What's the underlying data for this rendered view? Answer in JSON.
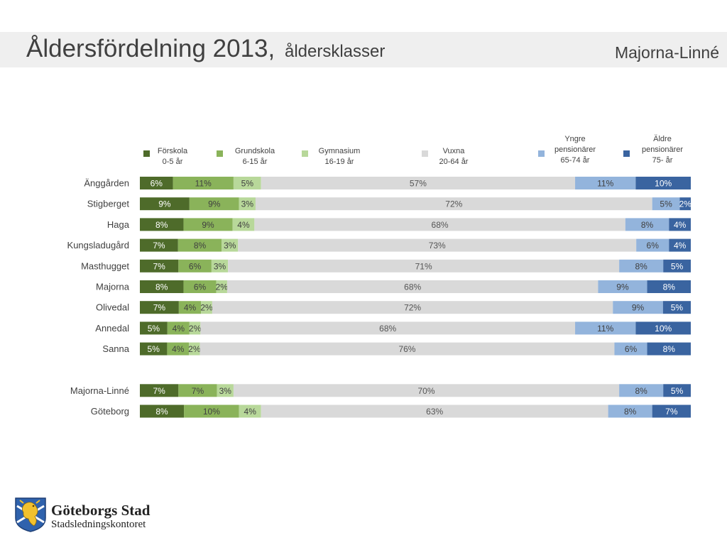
{
  "header": {
    "title": "Åldersfördelning 2013,",
    "subtitle": "åldersklasser",
    "region": "Majorna-Linné"
  },
  "footer": {
    "org_name": "Göteborgs Stad",
    "dept_name": "Stadsledningskontoret"
  },
  "colors": {
    "label_text": "#404040",
    "segments": [
      "#4e6b2a",
      "#8ab35a",
      "#b8d89a",
      "#d9d9d9",
      "#93b4dc",
      "#3a64a0"
    ],
    "segment_text": [
      "#ffffff",
      "#404040",
      "#404040",
      "#555555",
      "#404040",
      "#ffffff"
    ]
  },
  "chart_data": {
    "type": "bar",
    "orientation": "horizontal",
    "stacked": true,
    "legend_position": "top",
    "series": [
      {
        "name": "Förskola",
        "range": "0-5 år"
      },
      {
        "name": "Grundskola",
        "range": "6-15 år"
      },
      {
        "name": "Gymnasium",
        "range": "16-19 år"
      },
      {
        "name": "Vuxna",
        "range": "20-64 år"
      },
      {
        "name": "Yngre pensionärer",
        "range": "65-74 år"
      },
      {
        "name": "Äldre pensionärer",
        "range": "75- år"
      }
    ],
    "categories": [
      {
        "name": "Änggården",
        "values": [
          6,
          11,
          5,
          57,
          11,
          10
        ]
      },
      {
        "name": "Stigberget",
        "values": [
          9,
          9,
          3,
          72,
          5,
          2
        ]
      },
      {
        "name": "Haga",
        "values": [
          8,
          9,
          4,
          68,
          8,
          4
        ]
      },
      {
        "name": "Kungsladugård",
        "values": [
          7,
          8,
          3,
          73,
          6,
          4
        ]
      },
      {
        "name": "Masthugget",
        "values": [
          7,
          6,
          3,
          71,
          8,
          5
        ]
      },
      {
        "name": "Majorna",
        "values": [
          8,
          6,
          2,
          68,
          9,
          8
        ]
      },
      {
        "name": "Olivedal",
        "values": [
          7,
          4,
          2,
          72,
          9,
          5
        ]
      },
      {
        "name": "Annedal",
        "values": [
          5,
          4,
          2,
          68,
          11,
          10
        ]
      },
      {
        "name": "Sanna",
        "values": [
          5,
          4,
          2,
          76,
          6,
          8
        ]
      },
      {
        "name": "Majorna-Linné",
        "values": [
          7,
          7,
          3,
          70,
          8,
          5
        ],
        "group_gap_before": true
      },
      {
        "name": "Göteborg",
        "values": [
          8,
          10,
          4,
          63,
          8,
          7
        ]
      }
    ],
    "value_suffix": "%"
  }
}
